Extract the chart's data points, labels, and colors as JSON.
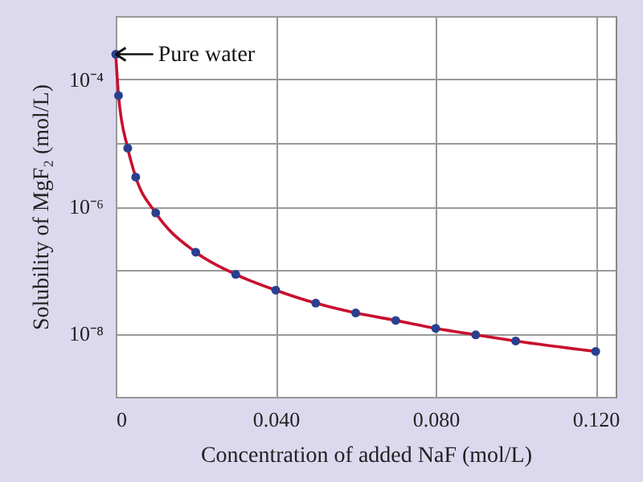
{
  "chart_data": {
    "type": "line",
    "xlabel": "Concentration of added NaF (mol/L)",
    "ylabel": "Solubility of MgF₂ (mol/L)",
    "x": [
      0,
      0.0007,
      0.003,
      0.005,
      0.01,
      0.02,
      0.03,
      0.04,
      0.05,
      0.06,
      0.07,
      0.08,
      0.09,
      0.1,
      0.12
    ],
    "series": [
      {
        "color": "#c8102e",
        "marker": "none",
        "values": [
          0.00025,
          5.6e-05,
          8.3e-06,
          2.9e-06,
          7.9e-07,
          1.9e-07,
          8.5e-08,
          4.8e-08,
          3e-08,
          2.1e-08,
          1.6e-08,
          1.2e-08,
          9.5e-09,
          7.6e-09,
          5.2e-09
        ]
      },
      {
        "type": "scatter",
        "color": "#2b3f8f",
        "marker": "circle",
        "values": [
          0.00025,
          5.6e-05,
          8.3e-06,
          2.9e-06,
          7.9e-07,
          1.9e-07,
          8.5e-08,
          4.8e-08,
          3e-08,
          2.1e-08,
          1.6e-08,
          1.2e-08,
          9.5e-09,
          7.6e-09,
          5.2e-09
        ]
      }
    ],
    "xlim": [
      0,
      0.125
    ],
    "xticks": [
      0,
      {
        "value": 0.04,
        "label": "0.040"
      },
      {
        "value": 0.08,
        "label": "0.080"
      },
      {
        "value": 0.12,
        "label": "0.120"
      }
    ],
    "ylim": [
      1e-09,
      0.001
    ],
    "yticks": [
      {
        "value": 1e-09,
        "label": null
      },
      {
        "value": 1e-08,
        "label": "10⁻⁸"
      },
      {
        "value": 1e-07,
        "label": null
      },
      {
        "value": 1e-06,
        "label": "10⁻⁶"
      },
      {
        "value": 1e-05,
        "label": null
      },
      {
        "value": 0.0001,
        "label": "10⁻⁴"
      },
      {
        "value": 0.001,
        "label": null
      }
    ],
    "log": true,
    "grid": true,
    "annotations": [
      {
        "text": "Pure water",
        "x": 0,
        "y": 0.00025
      }
    ]
  }
}
